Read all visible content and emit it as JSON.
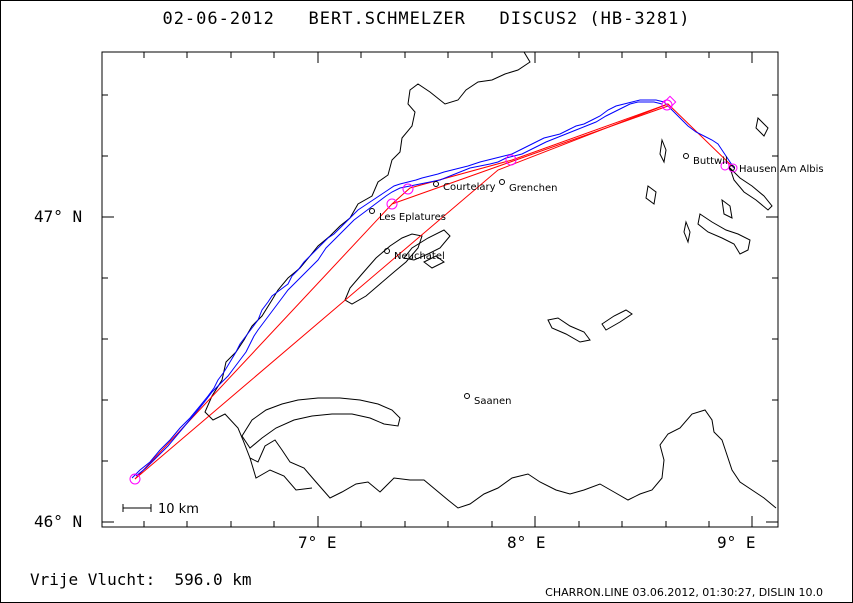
{
  "header": {
    "date": "02-06-2012",
    "pilot": "BERT.SCHMELZER",
    "glider": "DISCUS2 (HB-3281)"
  },
  "axes": {
    "x_ticks": [
      "7° E",
      "8° E",
      "9° E"
    ],
    "y_ticks": [
      "47° N",
      "46° N"
    ]
  },
  "scale_bar": {
    "label": "10 km"
  },
  "places": [
    {
      "name": "Buttwil",
      "lon": 8.74,
      "lat": 47.2
    },
    {
      "name": "Hausen Am Albis",
      "lon": 8.95,
      "lat": 47.16
    },
    {
      "name": "Courtelary",
      "lon": 7.55,
      "lat": 47.1
    },
    {
      "name": "Grenchen",
      "lon": 7.89,
      "lat": 47.1
    },
    {
      "name": "Les Eplatures",
      "lon": 7.26,
      "lat": 47.02
    },
    {
      "name": "Neuchatel",
      "lon": 7.32,
      "lat": 46.88
    },
    {
      "name": "Saanen",
      "lon": 7.7,
      "lat": 46.43
    }
  ],
  "footer": {
    "distance_label": "Vrije Vlucht:",
    "distance_value": "596.0 km",
    "source": "CHARRON.LINE 03.06.2012, 01:30:27, DISLIN 10.0"
  },
  "colors": {
    "track": "#0000ff",
    "task": "#ff0000",
    "turnpoint": "#ff00ff",
    "map": "#000000"
  }
}
